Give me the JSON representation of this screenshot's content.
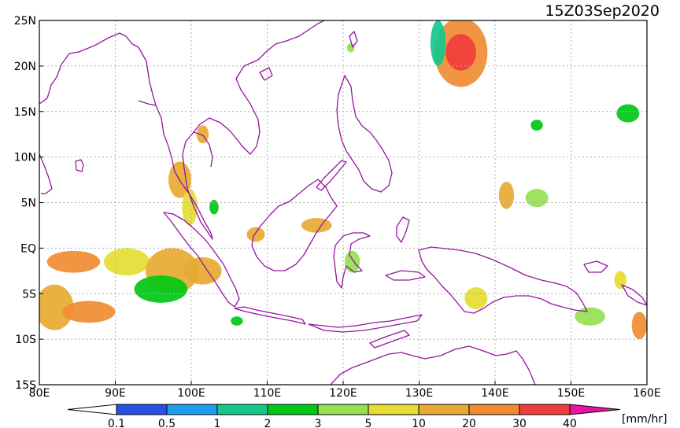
{
  "title": "15Z03Sep2020",
  "units": "[mm/hr]",
  "map": {
    "lon_range": [
      80,
      160
    ],
    "lat_range": [
      -15,
      25
    ],
    "grid": true,
    "lon_ticks": [
      {
        "value": 80,
        "label": "80E"
      },
      {
        "value": 90,
        "label": "90E"
      },
      {
        "value": 100,
        "label": "100E"
      },
      {
        "value": 110,
        "label": "110E"
      },
      {
        "value": 120,
        "label": "120E"
      },
      {
        "value": 130,
        "label": "130E"
      },
      {
        "value": 140,
        "label": "140E"
      },
      {
        "value": 150,
        "label": "150E"
      },
      {
        "value": 160,
        "label": "160E"
      }
    ],
    "lat_ticks": [
      {
        "value": 25,
        "label": "25N"
      },
      {
        "value": 20,
        "label": "20N"
      },
      {
        "value": 15,
        "label": "15N"
      },
      {
        "value": 10,
        "label": "10N"
      },
      {
        "value": 5,
        "label": "5N"
      },
      {
        "value": 0,
        "label": "EQ"
      },
      {
        "value": -5,
        "label": "5S"
      },
      {
        "value": -10,
        "label": "10S"
      },
      {
        "value": -15,
        "label": "15S"
      }
    ]
  },
  "colorbar": {
    "thresholds": [
      "0.1",
      "0.5",
      "1",
      "2",
      "3",
      "5",
      "10",
      "20",
      "30",
      "40"
    ],
    "colors": [
      "#2850e6",
      "#1e9ef0",
      "#14c88c",
      "#00c814",
      "#96e050",
      "#e6dc32",
      "#e6aa32",
      "#f08c32",
      "#f03c3c",
      "#e614a0"
    ],
    "under_color": "#ffffff",
    "over_color": "#e614a0"
  },
  "colors": {
    "coast": "#9614a0",
    "grid": "#b0b0b0",
    "frame": "#000000"
  },
  "precip_cells": [
    {
      "lon": 84.5,
      "lat": -1.5,
      "rx": 3.5,
      "ry": 1.2,
      "level": 7
    },
    {
      "lon": 82.0,
      "lat": -6.5,
      "rx": 2.5,
      "ry": 2.5,
      "level": 6
    },
    {
      "lon": 86.5,
      "lat": -7.0,
      "rx": 3.5,
      "ry": 1.2,
      "level": 7
    },
    {
      "lon": 91.5,
      "lat": -1.5,
      "rx": 3.0,
      "ry": 1.5,
      "level": 5
    },
    {
      "lon": 97.5,
      "lat": -2.5,
      "rx": 3.5,
      "ry": 2.5,
      "level": 6
    },
    {
      "lon": 96.0,
      "lat": -4.5,
      "rx": 3.5,
      "ry": 1.5,
      "level": 3
    },
    {
      "lon": 101.5,
      "lat": -2.5,
      "rx": 2.5,
      "ry": 1.5,
      "level": 6
    },
    {
      "lon": 98.5,
      "lat": 7.5,
      "rx": 1.5,
      "ry": 2.0,
      "level": 6
    },
    {
      "lon": 99.8,
      "lat": 4.5,
      "rx": 1.0,
      "ry": 2.0,
      "level": 5
    },
    {
      "lon": 101.5,
      "lat": 12.5,
      "rx": 0.8,
      "ry": 1.0,
      "level": 6
    },
    {
      "lon": 108.5,
      "lat": 1.5,
      "rx": 1.2,
      "ry": 0.8,
      "level": 6
    },
    {
      "lon": 116.5,
      "lat": 2.5,
      "rx": 2.0,
      "ry": 0.8,
      "level": 6
    },
    {
      "lon": 121.2,
      "lat": -1.5,
      "rx": 1.0,
      "ry": 1.2,
      "level": 4
    },
    {
      "lon": 135.5,
      "lat": 21.5,
      "rx": 3.5,
      "ry": 3.8,
      "level": 7
    },
    {
      "lon": 135.5,
      "lat": 21.5,
      "rx": 2.0,
      "ry": 2.0,
      "level": 8
    },
    {
      "lon": 132.5,
      "lat": 22.5,
      "rx": 1.0,
      "ry": 2.5,
      "level": 2
    },
    {
      "lon": 141.5,
      "lat": 5.8,
      "rx": 1.0,
      "ry": 1.5,
      "level": 6
    },
    {
      "lon": 137.5,
      "lat": -5.5,
      "rx": 1.5,
      "ry": 1.2,
      "level": 5
    },
    {
      "lon": 152.5,
      "lat": -7.5,
      "rx": 2.0,
      "ry": 1.0,
      "level": 4
    },
    {
      "lon": 159.0,
      "lat": -8.5,
      "rx": 1.0,
      "ry": 1.5,
      "level": 7
    },
    {
      "lon": 156.5,
      "lat": -3.5,
      "rx": 0.8,
      "ry": 1.0,
      "level": 5
    },
    {
      "lon": 145.5,
      "lat": 13.5,
      "rx": 0.8,
      "ry": 0.6,
      "level": 3
    },
    {
      "lon": 157.5,
      "lat": 14.8,
      "rx": 1.5,
      "ry": 1.0,
      "level": 3
    },
    {
      "lon": 145.5,
      "lat": 5.5,
      "rx": 1.5,
      "ry": 1.0,
      "level": 4
    },
    {
      "lon": 106.0,
      "lat": -8.0,
      "rx": 0.8,
      "ry": 0.5,
      "level": 3
    },
    {
      "lon": 121.0,
      "lat": 22.0,
      "rx": 0.5,
      "ry": 0.5,
      "level": 4
    },
    {
      "lon": 103.0,
      "lat": 4.5,
      "rx": 0.6,
      "ry": 0.8,
      "level": 3
    }
  ]
}
